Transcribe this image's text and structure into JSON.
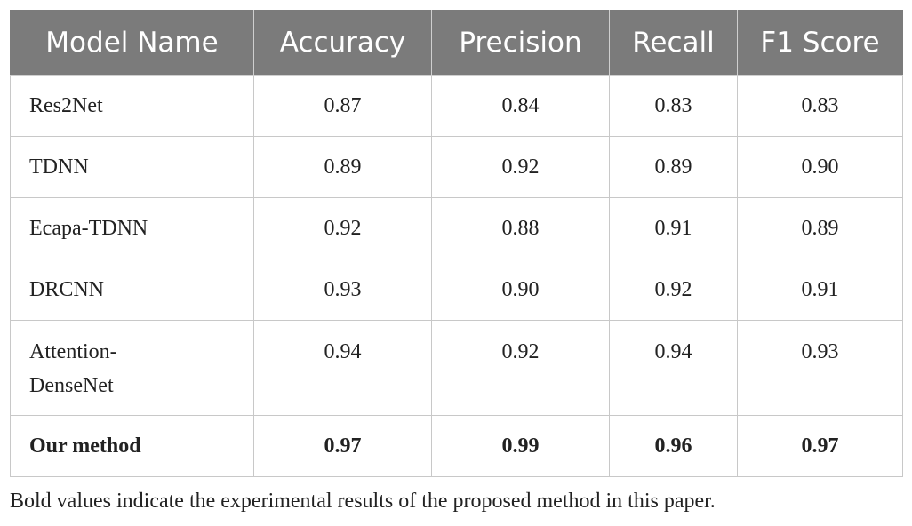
{
  "table": {
    "headers": [
      "Model Name",
      "Accuracy",
      "Precision",
      "Recall",
      "F1 Score"
    ],
    "rows": [
      {
        "name": "Res2Net",
        "accuracy": "0.87",
        "precision": "0.84",
        "recall": "0.83",
        "f1": "0.83"
      },
      {
        "name": "TDNN",
        "accuracy": "0.89",
        "precision": "0.92",
        "recall": "0.89",
        "f1": "0.90"
      },
      {
        "name": "Ecapa-TDNN",
        "accuracy": "0.92",
        "precision": "0.88",
        "recall": "0.91",
        "f1": "0.89"
      },
      {
        "name": "DRCNN",
        "accuracy": "0.93",
        "precision": "0.90",
        "recall": "0.92",
        "f1": "0.91"
      },
      {
        "name_line1": "Attention-",
        "name_line2": "DenseNet",
        "accuracy": "0.94",
        "precision": "0.92",
        "recall": "0.94",
        "f1": "0.93"
      },
      {
        "name": "Our method",
        "accuracy": "0.97",
        "precision": "0.99",
        "recall": "0.96",
        "f1": "0.97"
      }
    ]
  },
  "footnote": "Bold values indicate the experimental results of the proposed method in this paper.",
  "colors": {
    "header_bg": "#7b7b7b",
    "header_text": "#ffffff",
    "grid": "#c8c8c8"
  }
}
